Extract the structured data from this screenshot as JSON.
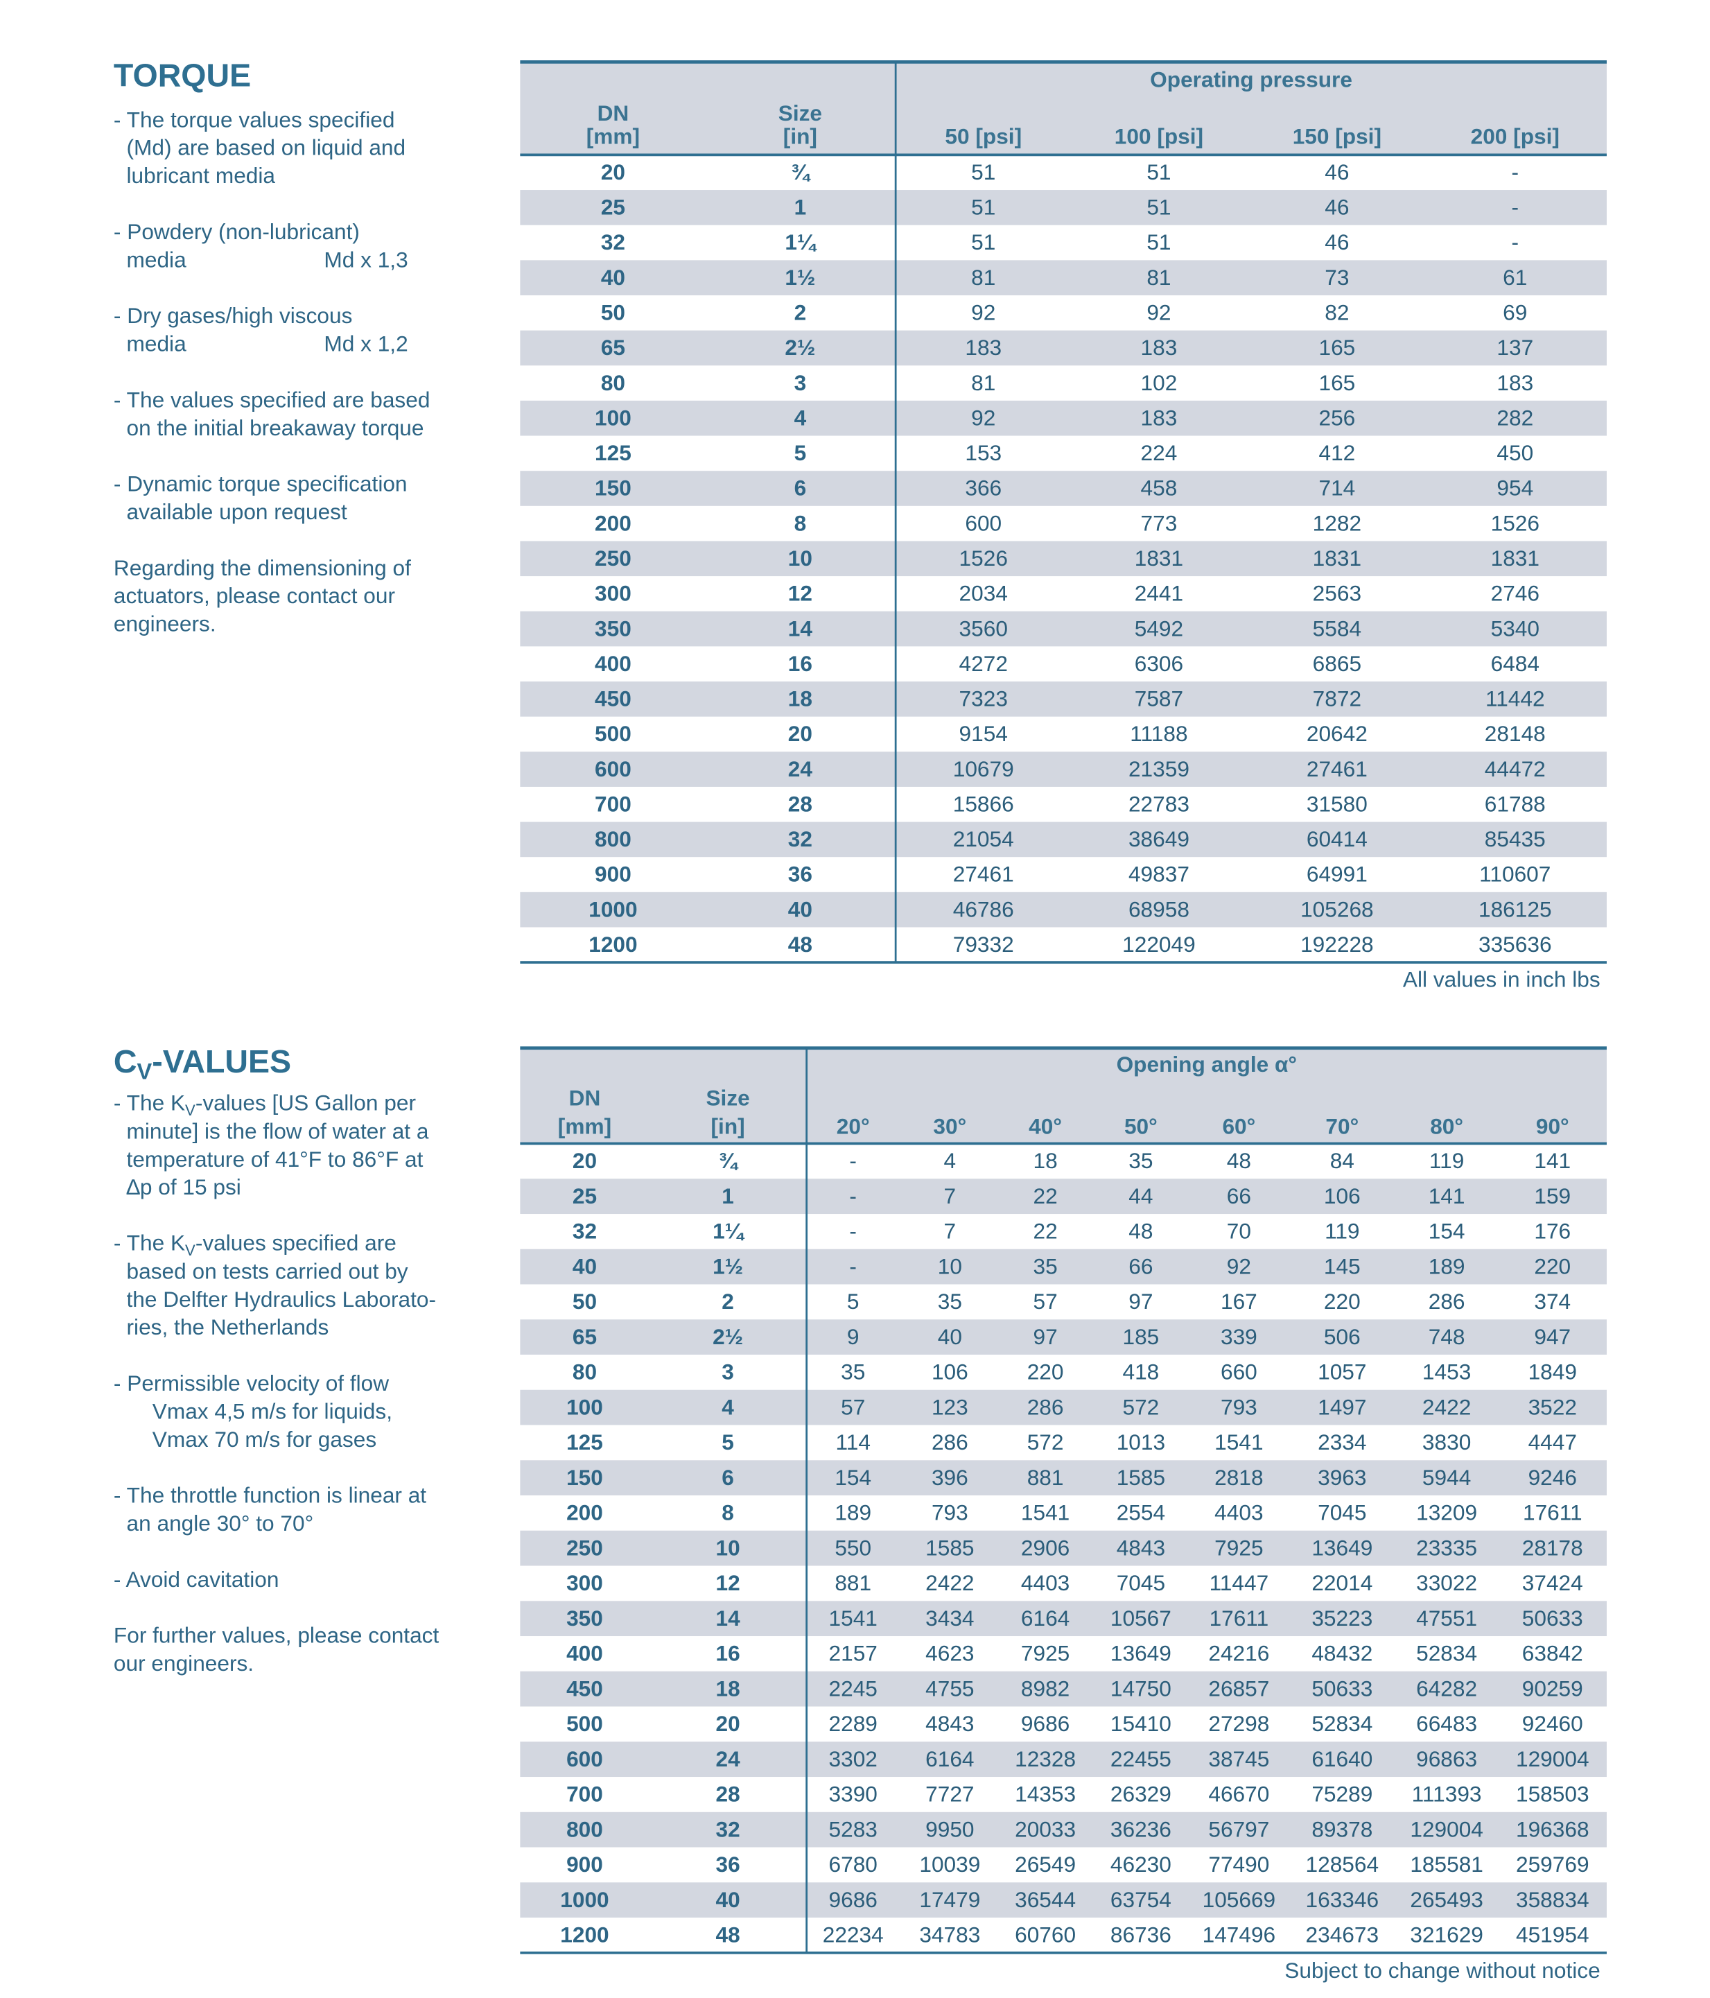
{
  "torque": {
    "title": "TORQUE",
    "notes": [
      {
        "lines": [
          "- The torque values specified",
          "(Md) are based on liquid and",
          "lubricant media"
        ]
      },
      {
        "lines": [
          "- Powdery (non-lubricant)",
          "media"
        ],
        "factor": "Md x 1,3"
      },
      {
        "lines": [
          "- Dry gases/high viscous",
          "media"
        ],
        "factor": "Md x 1,2"
      },
      {
        "lines": [
          "- The values specified are based",
          "on the initial breakaway torque"
        ]
      },
      {
        "lines": [
          "- Dynamic torque specification",
          "available upon request"
        ]
      },
      {
        "lines": [
          "Regarding the dimensioning of",
          "actuators, please contact our",
          "engineers."
        ]
      }
    ],
    "table": {
      "group": "Operating pressure",
      "columns": [
        [
          "DN",
          "[mm]"
        ],
        [
          "Size",
          "[in]"
        ],
        "50 [psi]",
        "100 [psi]",
        "150 [psi]",
        "200 [psi]"
      ],
      "rows": [
        [
          20,
          "¾",
          51,
          51,
          46,
          "-"
        ],
        [
          25,
          1,
          51,
          51,
          46,
          "-"
        ],
        [
          32,
          "1¼",
          51,
          51,
          46,
          "-"
        ],
        [
          40,
          "1½",
          81,
          81,
          73,
          61
        ],
        [
          50,
          2,
          92,
          92,
          82,
          69
        ],
        [
          65,
          "2½",
          183,
          183,
          165,
          137
        ],
        [
          80,
          3,
          81,
          102,
          165,
          183
        ],
        [
          100,
          4,
          92,
          183,
          256,
          282
        ],
        [
          125,
          5,
          153,
          224,
          412,
          450
        ],
        [
          150,
          6,
          366,
          458,
          714,
          954
        ],
        [
          200,
          8,
          600,
          773,
          1282,
          1526
        ],
        [
          250,
          10,
          1526,
          1831,
          1831,
          1831
        ],
        [
          300,
          12,
          2034,
          2441,
          2563,
          2746
        ],
        [
          350,
          14,
          3560,
          5492,
          5584,
          5340
        ],
        [
          400,
          16,
          4272,
          6306,
          6865,
          6484
        ],
        [
          450,
          18,
          7323,
          7587,
          7872,
          11442
        ],
        [
          500,
          20,
          9154,
          11188,
          20642,
          28148
        ],
        [
          600,
          24,
          10679,
          21359,
          27461,
          44472
        ],
        [
          700,
          28,
          15866,
          22783,
          31580,
          61788
        ],
        [
          800,
          32,
          21054,
          38649,
          60414,
          85435
        ],
        [
          900,
          36,
          27461,
          49837,
          64991,
          110607
        ],
        [
          1000,
          40,
          46786,
          68958,
          105268,
          186125
        ],
        [
          1200,
          48,
          79332,
          122049,
          192228,
          335636
        ]
      ]
    },
    "footnote": "All values in inch lbs"
  },
  "cv": {
    "title": [
      "C",
      {
        "sub": "V"
      },
      "-VALUES"
    ],
    "notes": [
      {
        "lines": [
          [
            "- The K",
            {
              "sub": "V"
            },
            "-values [US Gallon per"
          ],
          "minute] is the flow of water at a",
          "temperature of 41°F to 86°F at",
          "∆p of 15 psi"
        ]
      },
      {
        "lines": [
          [
            "- The K",
            {
              "sub": "V"
            },
            "-values specified are"
          ],
          "based on tests carried out by",
          "the Delfter Hydraulics Laborato-",
          "ries, the Netherlands"
        ]
      },
      {
        "lines": [
          "- Permissible velocity of flow",
          "Vmax 4,5 m/s for liquids,",
          "Vmax 70 m/s for gases"
        ]
      },
      {
        "lines": [
          "- The throttle function is linear at",
          "an angle 30° to 70°"
        ]
      },
      {
        "lines": [
          "- Avoid cavitation"
        ]
      },
      {
        "lines": [
          "For further values, please contact",
          "our engineers."
        ]
      }
    ],
    "table": {
      "group": "Opening angle α°",
      "columns": [
        [
          "DN",
          "[mm]"
        ],
        [
          "Size",
          "[in]"
        ],
        "20°",
        "30°",
        "40°",
        "50°",
        "60°",
        "70°",
        "80°",
        "90°"
      ],
      "rows": [
        [
          20,
          "¾",
          "-",
          4,
          18,
          35,
          48,
          84,
          119,
          141
        ],
        [
          25,
          1,
          "-",
          7,
          22,
          44,
          66,
          106,
          141,
          159
        ],
        [
          32,
          "1¼",
          "-",
          7,
          22,
          48,
          70,
          119,
          154,
          176
        ],
        [
          40,
          "1½",
          "-",
          10,
          35,
          66,
          92,
          145,
          189,
          220
        ],
        [
          50,
          2,
          5,
          35,
          57,
          97,
          167,
          220,
          286,
          374
        ],
        [
          65,
          "2½",
          9,
          40,
          97,
          185,
          339,
          506,
          748,
          947
        ],
        [
          80,
          3,
          35,
          106,
          220,
          418,
          660,
          1057,
          1453,
          1849
        ],
        [
          100,
          4,
          57,
          123,
          286,
          572,
          793,
          1497,
          2422,
          3522
        ],
        [
          125,
          5,
          114,
          286,
          572,
          1013,
          1541,
          2334,
          3830,
          4447
        ],
        [
          150,
          6,
          154,
          396,
          881,
          1585,
          2818,
          3963,
          5944,
          9246
        ],
        [
          200,
          8,
          189,
          793,
          1541,
          2554,
          4403,
          7045,
          13209,
          17611
        ],
        [
          250,
          10,
          550,
          1585,
          2906,
          4843,
          7925,
          13649,
          23335,
          28178
        ],
        [
          300,
          12,
          881,
          2422,
          4403,
          7045,
          11447,
          22014,
          33022,
          37424
        ],
        [
          350,
          14,
          1541,
          3434,
          6164,
          10567,
          17611,
          35223,
          47551,
          50633
        ],
        [
          400,
          16,
          2157,
          4623,
          7925,
          13649,
          24216,
          48432,
          52834,
          63842
        ],
        [
          450,
          18,
          2245,
          4755,
          8982,
          14750,
          26857,
          50633,
          64282,
          90259
        ],
        [
          500,
          20,
          2289,
          4843,
          9686,
          15410,
          27298,
          52834,
          66483,
          92460
        ],
        [
          600,
          24,
          3302,
          6164,
          12328,
          22455,
          38745,
          61640,
          96863,
          129004
        ],
        [
          700,
          28,
          3390,
          7727,
          14353,
          26329,
          46670,
          75289,
          111393,
          158503
        ],
        [
          800,
          32,
          5283,
          9950,
          20033,
          36236,
          56797,
          89378,
          129004,
          196368
        ],
        [
          900,
          36,
          6780,
          10039,
          26549,
          46230,
          77490,
          128564,
          185581,
          259769
        ],
        [
          1000,
          40,
          9686,
          17479,
          36544,
          63754,
          105669,
          163346,
          265493,
          358834
        ],
        [
          1200,
          48,
          22234,
          34783,
          60760,
          86736,
          147496,
          234673,
          321629,
          451954
        ]
      ]
    },
    "footnote": "Subject to change without notice"
  }
}
